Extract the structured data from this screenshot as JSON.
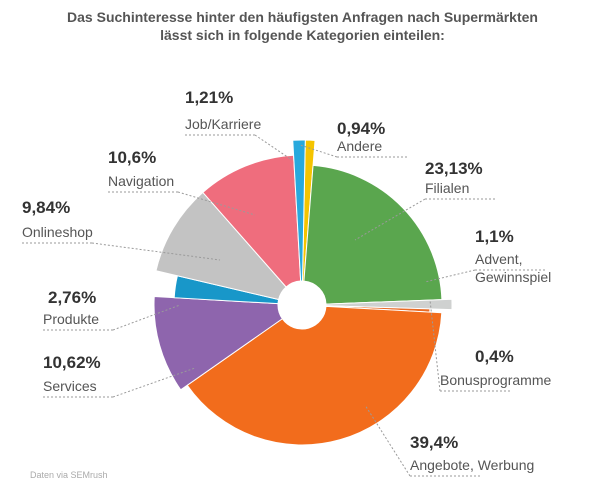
{
  "title_line1": "Das Suchinteresse hinter den häufigsten Anfragen nach Supermärkten",
  "title_line2": "lässt sich in folgende Kategorien einteilen:",
  "source": "Daten via SEMrush",
  "chart_data": {
    "type": "pie",
    "title": "Das Suchinteresse hinter den häufigsten Anfragen nach Supermärkten lässt sich in folgende Kategorien einteilen:",
    "slices": [
      {
        "label": "Andere",
        "value_text": "0,94%",
        "value": 0.94,
        "color": "#f5c400"
      },
      {
        "label": "Filialen",
        "value_text": "23,13%",
        "value": 23.13,
        "color": "#5aa64e"
      },
      {
        "label": "Advent, Gewinnspiel",
        "value_text": "1,1%",
        "value": 1.1,
        "color": "#cfd1d0"
      },
      {
        "label": "Bonusprogramme",
        "value_text": "0,4%",
        "value": 0.4,
        "color": "#e96b25"
      },
      {
        "label": "Angebote, Werbung",
        "value_text": "39,4%",
        "value": 39.4,
        "color": "#f26c1c"
      },
      {
        "label": "Services",
        "value_text": "10,62%",
        "value": 10.62,
        "color": "#8e65ad"
      },
      {
        "label": "Produkte",
        "value_text": "2,76%",
        "value": 2.76,
        "color": "#1897c9"
      },
      {
        "label": "Onlineshop",
        "value_text": "9,84%",
        "value": 9.84,
        "color": "#c3c3c3"
      },
      {
        "label": "Navigation",
        "value_text": "10,6%",
        "value": 10.6,
        "color": "#ef6d7d"
      },
      {
        "label": "Job/Karriere",
        "value_text": "1,21%",
        "value": 1.21,
        "color": "#28a9dd"
      }
    ]
  }
}
